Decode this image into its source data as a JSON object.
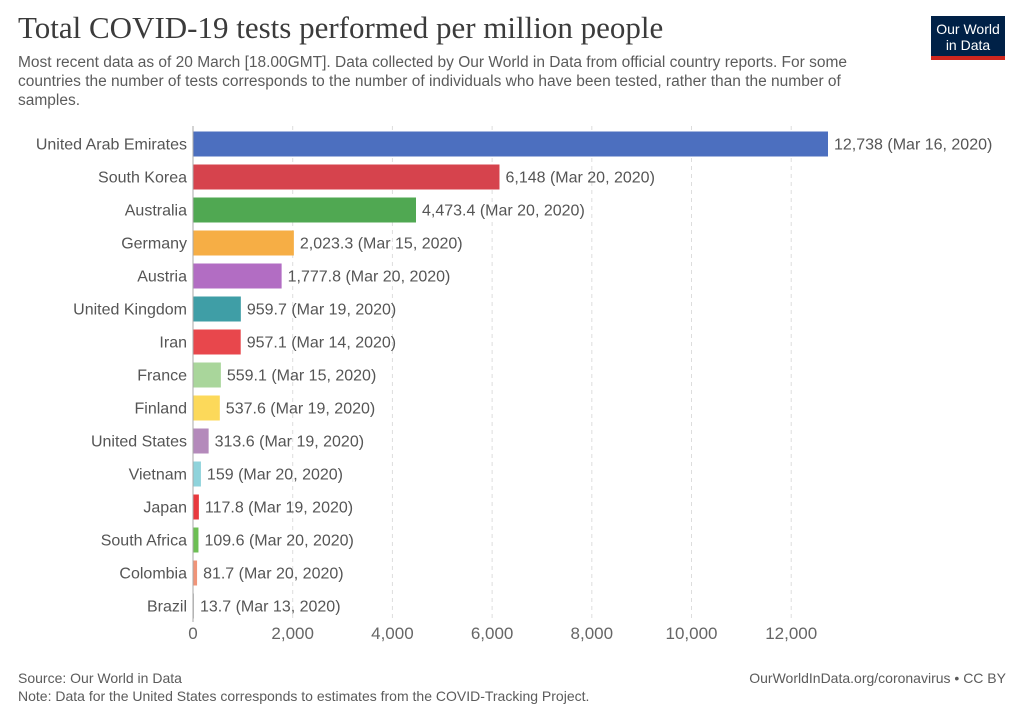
{
  "header": {
    "title": "Total COVID-19 tests performed per million people",
    "subtitle": "Most recent data as of 20 March [18.00GMT]. Data collected by Our World in Data from official country reports. For some countries the number of tests corresponds to the number of individuals who have been tested, rather than the number of samples.",
    "logo_line1": "Our World",
    "logo_line2": "in Data"
  },
  "footer": {
    "source": "Source: Our World in Data",
    "note": "Note: Data for the United States corresponds to estimates from the COVID-Tracking Project.",
    "credit": "OurWorldInData.org/coronavirus • CC BY"
  },
  "colors": {
    "logo_bg": "#002147",
    "logo_accent": "#ce261e",
    "grid": "#dddddd"
  },
  "chart_data": {
    "type": "bar",
    "orientation": "horizontal",
    "title": "Total COVID-19 tests performed per million people",
    "categories": [
      "United Arab Emirates",
      "South Korea",
      "Australia",
      "Germany",
      "Austria",
      "United Kingdom",
      "Iran",
      "France",
      "Finland",
      "United States",
      "Vietnam",
      "Japan",
      "South Africa",
      "Colombia",
      "Brazil"
    ],
    "values": [
      12738,
      6148,
      4473.4,
      2023.3,
      1777.8,
      959.7,
      957.1,
      559.1,
      537.6,
      313.6,
      159,
      117.8,
      109.6,
      81.7,
      13.7
    ],
    "value_labels": [
      "12,738",
      "6,148",
      "4,473.4",
      "2,023.3",
      "1,777.8",
      "959.7",
      "957.1",
      "559.1",
      "537.6",
      "313.6",
      "159",
      "117.8",
      "109.6",
      "81.7",
      "13.7"
    ],
    "dates": [
      "(Mar 16, 2020)",
      "(Mar 20, 2020)",
      "(Mar 20, 2020)",
      "(Mar 15, 2020)",
      "(Mar 20, 2020)",
      "(Mar 19, 2020)",
      "(Mar 14, 2020)",
      "(Mar 15, 2020)",
      "(Mar 19, 2020)",
      "(Mar 19, 2020)",
      "(Mar 20, 2020)",
      "(Mar 19, 2020)",
      "(Mar 20, 2020)",
      "(Mar 20, 2020)",
      "(Mar 13, 2020)"
    ],
    "colors": [
      "#4c6fbf",
      "#d6434d",
      "#50a852",
      "#f6ae45",
      "#b26dc3",
      "#3f9ea6",
      "#e8474c",
      "#a9d69b",
      "#fcd95a",
      "#b48abb",
      "#8fd3db",
      "#e8393e",
      "#6dbf54",
      "#f09478",
      "#bfbfbf"
    ],
    "xticks": [
      0,
      2000,
      4000,
      6000,
      8000,
      10000,
      12000
    ],
    "xtick_labels": [
      "0",
      "2,000",
      "4,000",
      "6,000",
      "8,000",
      "10,000",
      "12,000"
    ],
    "xlim": [
      0,
      12738
    ],
    "grid": true
  }
}
